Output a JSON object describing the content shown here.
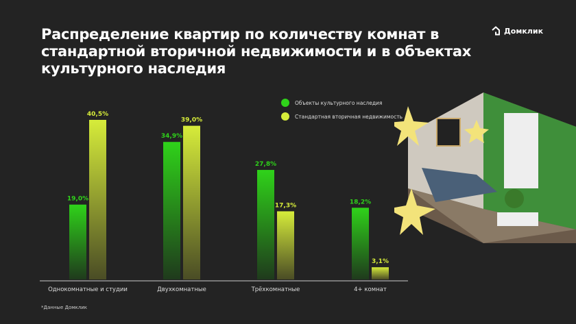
{
  "title": "Распределение квартир по количеству комнат в стандартной вторичной недвижимости и в объектах культурного наследия",
  "logo": {
    "text": "Домклик",
    "icon": "house-icon"
  },
  "footnote": "*Данные Домклик",
  "colors": {
    "heritage": "#2fd21a",
    "standard": "#d6ec3a",
    "background": "#232323"
  },
  "chart_data": {
    "type": "bar",
    "categories": [
      "Однокомнатные и студии",
      "Двухкомнатные",
      "Трёхкомнатные",
      "4+ комнат"
    ],
    "series": [
      {
        "name": "Объекты культурного наследия",
        "values": [
          19.0,
          34.9,
          27.8,
          18.2
        ],
        "labels": [
          "19,0%",
          "34,9%",
          "27,8%",
          "18,2%"
        ]
      },
      {
        "name": "Стандартная вторичная недвижимость",
        "values": [
          40.5,
          39.0,
          17.3,
          3.1
        ],
        "labels": [
          "40,5%",
          "39,0%",
          "17,3%",
          "3,1%"
        ]
      }
    ],
    "unit": "%",
    "ylim": [
      0,
      45
    ],
    "grid": false,
    "legend": "top-right"
  }
}
